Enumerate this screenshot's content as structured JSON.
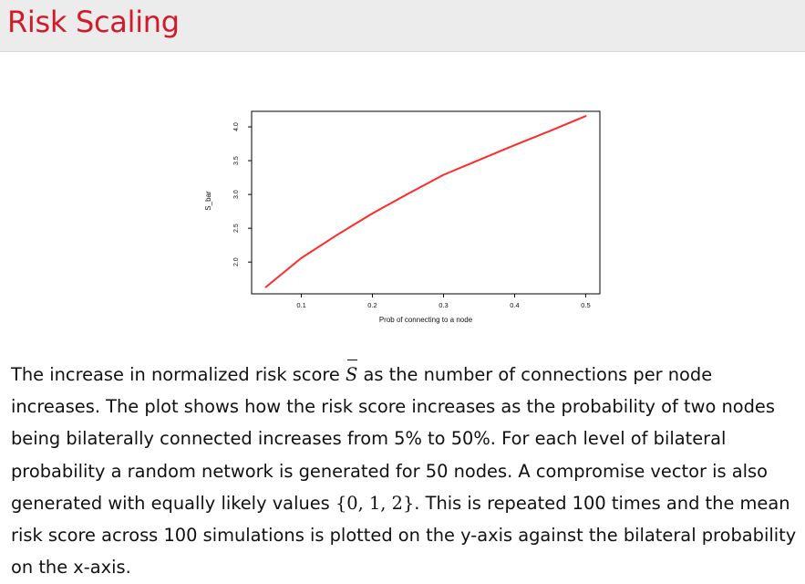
{
  "slide": {
    "title": "Risk Scaling"
  },
  "caption": {
    "part1": "The increase in normalized risk score ",
    "symbol": "S",
    "part2": " as the number of connections per node increases. The plot shows how the risk score increases as the probability of two nodes being bilaterally connected increases from 5% to 50%. For each level of bilateral probability a random network is generated for 50 nodes. A compromise vector is also generated with equally likely values ",
    "set": "{0, 1, 2}",
    "part3": ". This is repeated 100 times and the mean risk score across 100 simulations is plotted on the y-axis against the bilateral probability on the x-axis."
  },
  "colors": {
    "title": "#d11b2a",
    "line": "#ff2a2a",
    "title_bar_bg": "#ececec"
  },
  "chart_data": {
    "type": "line",
    "title": "",
    "xlabel": "Prob of connecting to a node",
    "ylabel": "S_bar",
    "x": [
      0.05,
      0.1,
      0.15,
      0.2,
      0.25,
      0.3,
      0.35,
      0.4,
      0.45,
      0.5
    ],
    "series": [
      {
        "values": [
          1.63,
          2.06,
          2.4,
          2.72,
          3.01,
          3.29,
          3.51,
          3.73,
          3.94,
          4.16
        ]
      }
    ],
    "xticks": [
      "0.1",
      "0.2",
      "0.3",
      "0.4",
      "0.5"
    ],
    "xtick_values": [
      0.1,
      0.2,
      0.3,
      0.4,
      0.5
    ],
    "yticks": [
      "2.0",
      "2.5",
      "3.0",
      "3.5",
      "4.0"
    ],
    "ytick_values": [
      2.0,
      2.5,
      3.0,
      3.5,
      4.0
    ],
    "xlim": [
      0.03,
      0.52
    ],
    "ylim": [
      1.53,
      4.23
    ],
    "grid": false,
    "legend": "none"
  }
}
